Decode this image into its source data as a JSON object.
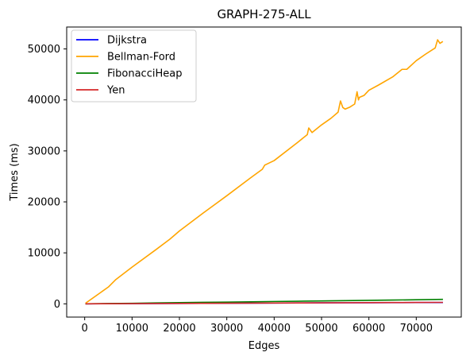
{
  "chart_data": {
    "type": "line",
    "title": "GRAPH-275-ALL",
    "xlabel": "Edges",
    "ylabel": "Times (ms)",
    "xlim": [
      -3800,
      79500
    ],
    "ylim": [
      -2600,
      54300
    ],
    "xticks": [
      0,
      10000,
      20000,
      30000,
      40000,
      50000,
      60000,
      70000
    ],
    "xtick_labels": [
      "0",
      "10000",
      "20000",
      "30000",
      "40000",
      "50000",
      "60000",
      "70000"
    ],
    "yticks": [
      0,
      10000,
      20000,
      30000,
      40000,
      50000
    ],
    "ytick_labels": [
      "0",
      "10000",
      "20000",
      "30000",
      "40000",
      "50000"
    ],
    "legend_position": "top-left",
    "grid": false,
    "series": [
      {
        "name": "Dijkstra",
        "color": "#0000ff",
        "x": [
          300,
          5000,
          10000,
          15000,
          20000,
          25000,
          30000,
          35000,
          40000,
          45000,
          50000,
          55000,
          60000,
          65000,
          70000,
          75500
        ],
        "y": [
          0,
          15,
          35,
          55,
          75,
          95,
          115,
          135,
          155,
          170,
          190,
          205,
          220,
          235,
          250,
          260
        ]
      },
      {
        "name": "Bellman-Ford",
        "color": "#ffa500",
        "x": [
          300,
          5000,
          6500,
          10000,
          15000,
          18000,
          20000,
          25000,
          30000,
          35000,
          37500,
          38000,
          40000,
          45000,
          47000,
          47300,
          48000,
          50000,
          52000,
          53500,
          54000,
          54500,
          55000,
          56000,
          57000,
          57500,
          57800,
          58000,
          59000,
          60000,
          62000,
          65000,
          67000,
          68000,
          70000,
          72000,
          74000,
          74500,
          75000,
          75500
        ],
        "y": [
          200,
          3300,
          4700,
          7200,
          10600,
          12700,
          14300,
          17800,
          21200,
          24700,
          26400,
          27200,
          28100,
          31700,
          33200,
          34500,
          33600,
          35100,
          36400,
          37600,
          39800,
          38500,
          38200,
          38600,
          39200,
          41600,
          40000,
          40500,
          40900,
          41900,
          42900,
          44500,
          46000,
          46000,
          47700,
          49000,
          50200,
          51800,
          51100,
          51400
        ]
      },
      {
        "name": "FibonacciHeap",
        "color": "#008000",
        "x": [
          300,
          5000,
          10000,
          15000,
          20000,
          25000,
          30000,
          35000,
          40000,
          45000,
          50000,
          55000,
          60000,
          65000,
          70000,
          75500
        ],
        "y": [
          0,
          55,
          110,
          170,
          230,
          290,
          340,
          400,
          460,
          510,
          570,
          630,
          690,
          740,
          800,
          870
        ]
      },
      {
        "name": "Yen",
        "color": "#d62728",
        "x": [
          300,
          5000,
          10000,
          15000,
          20000,
          25000,
          30000,
          35000,
          40000,
          45000,
          50000,
          55000,
          60000,
          65000,
          70000,
          75500
        ],
        "y": [
          0,
          20,
          40,
          60,
          80,
          100,
          120,
          140,
          160,
          180,
          200,
          220,
          240,
          255,
          270,
          285
        ]
      }
    ]
  }
}
